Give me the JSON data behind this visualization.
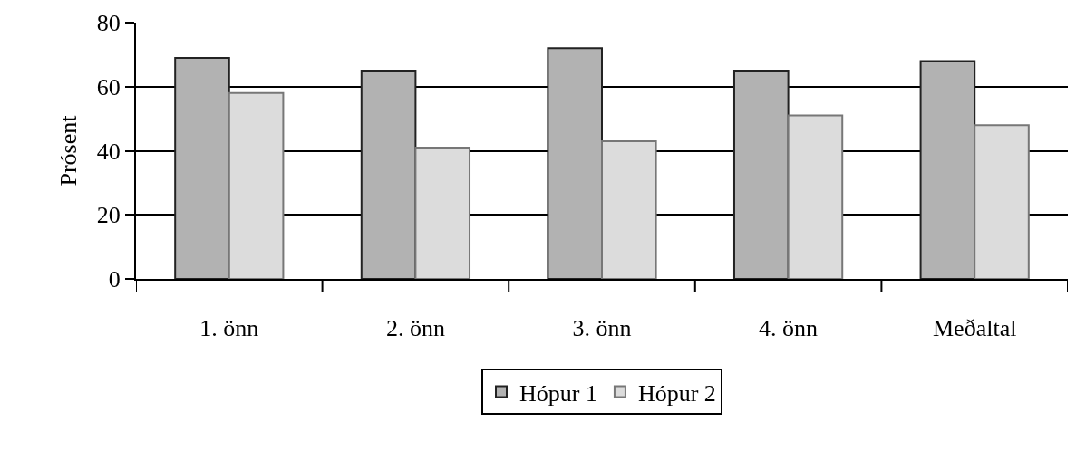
{
  "chart_data": {
    "type": "bar",
    "ylabel": "Prósent",
    "categories": [
      "1. önn",
      "2. önn",
      "3. önn",
      "4. önn",
      "Meðaltal"
    ],
    "series": [
      {
        "name": "Hópur 1",
        "color": "#b2b2b2",
        "values": [
          69,
          65,
          72,
          65,
          68
        ]
      },
      {
        "name": "Hópur 2",
        "color": "#dcdcdc",
        "values": [
          58,
          41,
          43,
          51,
          48
        ]
      }
    ],
    "ylim": [
      0,
      80
    ],
    "yticks": [
      0,
      20,
      40,
      60,
      80
    ],
    "grid": "y",
    "legend": "bottom"
  }
}
